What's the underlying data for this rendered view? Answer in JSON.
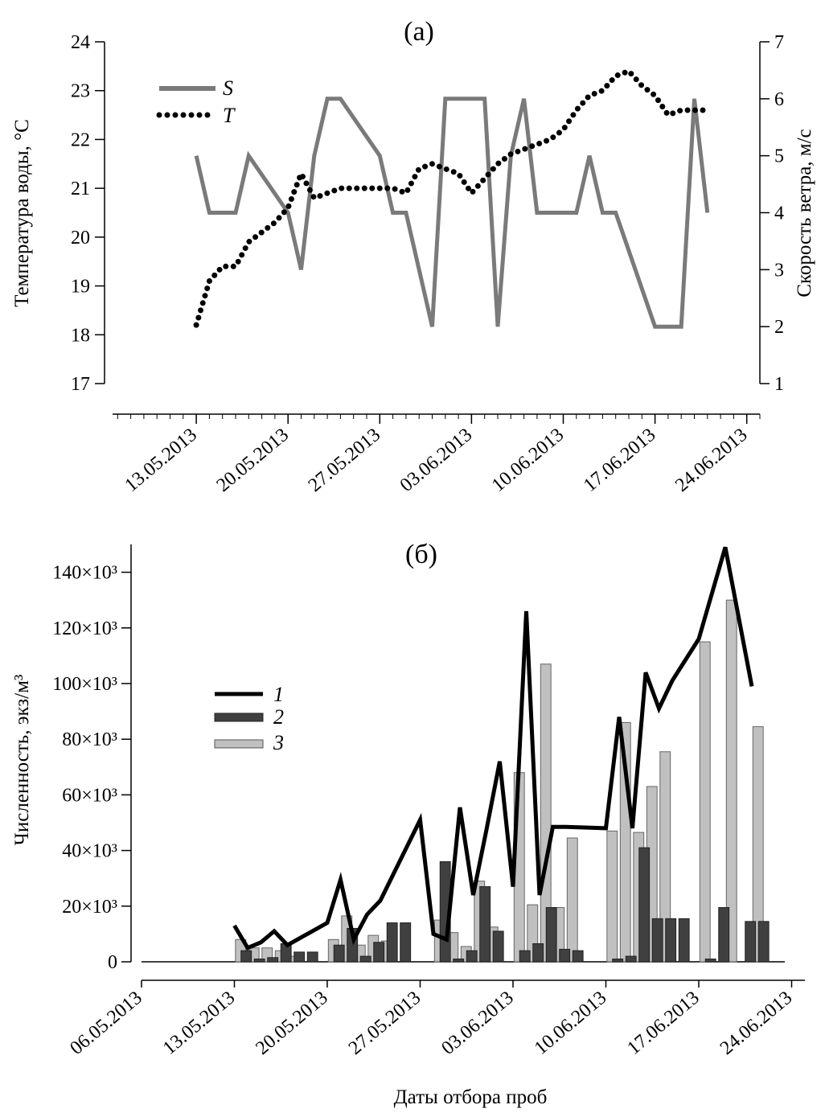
{
  "chart_data": [
    {
      "panel": "(а)",
      "type": "line",
      "ylabel": "Температура воды, °С",
      "y2label": "Скорость ветра, м/с",
      "ylim": [
        17,
        24
      ],
      "y2lim": [
        1,
        7
      ],
      "yticks": [
        17,
        18,
        19,
        20,
        21,
        22,
        23,
        24
      ],
      "y2ticks": [
        1,
        2,
        3,
        4,
        5,
        6,
        7
      ],
      "xlim": [
        "2013-05-06",
        "2013-06-25"
      ],
      "xticks": [
        "13.05.2013",
        "20.05.2013",
        "27.05.2013",
        "03.06.2013",
        "10.06.2013",
        "17.06.2013",
        "24.06.2013"
      ],
      "legend": "top-left",
      "series": [
        {
          "name": "S",
          "axis": "right",
          "style": "solid",
          "color": "#7a7a7a",
          "x": [
            "2013-05-13",
            "2013-05-14",
            "2013-05-16",
            "2013-05-17",
            "2013-05-20",
            "2013-05-21",
            "2013-05-22",
            "2013-05-23",
            "2013-05-24",
            "2013-05-27",
            "2013-05-28",
            "2013-05-29",
            "2013-05-31",
            "2013-06-01",
            "2013-06-04",
            "2013-06-05",
            "2013-06-06",
            "2013-06-07",
            "2013-06-08",
            "2013-06-10",
            "2013-06-11",
            "2013-06-12",
            "2013-06-13",
            "2013-06-14",
            "2013-06-17",
            "2013-06-19",
            "2013-06-20",
            "2013-06-21"
          ],
          "values": [
            5,
            4,
            4,
            5,
            4,
            3,
            5,
            6,
            6,
            5,
            4,
            4,
            2,
            6,
            6,
            2,
            5,
            6,
            4,
            4,
            4,
            5,
            4,
            4,
            2,
            2,
            6,
            4
          ]
        },
        {
          "name": "T",
          "axis": "left",
          "style": "dotted",
          "color": "#000000",
          "x": [
            "2013-05-13",
            "2013-05-14",
            "2013-05-15",
            "2013-05-16",
            "2013-05-17",
            "2013-05-18",
            "2013-05-19",
            "2013-05-20",
            "2013-05-21",
            "2013-05-22",
            "2013-05-23",
            "2013-05-24",
            "2013-05-25",
            "2013-05-26",
            "2013-05-27",
            "2013-05-28",
            "2013-05-29",
            "2013-05-30",
            "2013-05-31",
            "2013-06-01",
            "2013-06-02",
            "2013-06-03",
            "2013-06-04",
            "2013-06-05",
            "2013-06-06",
            "2013-06-07",
            "2013-06-08",
            "2013-06-09",
            "2013-06-10",
            "2013-06-11",
            "2013-06-12",
            "2013-06-13",
            "2013-06-14",
            "2013-06-15",
            "2013-06-16",
            "2013-06-17",
            "2013-06-18",
            "2013-06-19",
            "2013-06-20",
            "2013-06-21"
          ],
          "values": [
            18.2,
            19.1,
            19.4,
            19.4,
            19.9,
            20.1,
            20.3,
            20.6,
            21.3,
            20.8,
            20.9,
            21.0,
            21.0,
            21.0,
            21.0,
            21.0,
            20.9,
            21.4,
            21.5,
            21.4,
            21.3,
            20.9,
            21.2,
            21.5,
            21.7,
            21.8,
            21.9,
            22.0,
            22.2,
            22.6,
            22.9,
            23.0,
            23.3,
            23.4,
            23.1,
            22.9,
            22.5,
            22.6,
            22.6,
            22.6
          ]
        }
      ]
    },
    {
      "panel": "(б)",
      "type": "bar",
      "xlabel": "Даты отбора проб",
      "ylabel": "Численность, экз/м³",
      "ylim": [
        0,
        150000
      ],
      "yticks": [
        0,
        20000,
        40000,
        60000,
        80000,
        100000,
        120000,
        140000
      ],
      "ytick_labels": [
        "0",
        "20×10³",
        "40×10³",
        "60×10³",
        "80×10³",
        "100×10³",
        "120×10³",
        "140×10³"
      ],
      "xlim": [
        "2013-05-06",
        "2013-06-25"
      ],
      "xticks": [
        "06.05.2013",
        "13.05.2013",
        "20.05.2013",
        "27.05.2013",
        "03.06.2013",
        "10.06.2013",
        "17.06.2013",
        "24.06.2013"
      ],
      "legend": "center-left",
      "series": [
        {
          "name": "1",
          "style": "line",
          "color": "#000000",
          "x": [
            "2013-05-13",
            "2013-05-14",
            "2013-05-15",
            "2013-05-16",
            "2013-05-17",
            "2013-05-20",
            "2013-05-21",
            "2013-05-22",
            "2013-05-23",
            "2013-05-24",
            "2013-05-27",
            "2013-05-28",
            "2013-05-29",
            "2013-05-30",
            "2013-05-31",
            "2013-06-01",
            "2013-06-02",
            "2013-06-03",
            "2013-06-04",
            "2013-06-05",
            "2013-06-06",
            "2013-06-07",
            "2013-06-10",
            "2013-06-11",
            "2013-06-12",
            "2013-06-13",
            "2013-06-14",
            "2013-06-15",
            "2013-06-17",
            "2013-06-19",
            "2013-06-21"
          ],
          "values": [
            13000,
            5000,
            7000,
            11000,
            6000,
            14000,
            29500,
            8000,
            17000,
            22000,
            51000,
            10000,
            8000,
            55500,
            24000,
            47500,
            72000,
            27000,
            126000,
            24000,
            48500,
            48500,
            48000,
            88000,
            48000,
            104000,
            91000,
            101000,
            116000,
            149000,
            99000
          ]
        },
        {
          "name": "2",
          "style": "bar",
          "color": "#404040",
          "x": [
            "2013-05-13",
            "2013-05-14",
            "2013-05-15",
            "2013-05-16",
            "2013-05-17",
            "2013-05-18",
            "2013-05-20",
            "2013-05-21",
            "2013-05-22",
            "2013-05-23",
            "2013-05-24",
            "2013-05-25",
            "2013-05-28",
            "2013-05-29",
            "2013-05-30",
            "2013-05-31",
            "2013-06-01",
            "2013-06-03",
            "2013-06-04",
            "2013-06-05",
            "2013-06-06",
            "2013-06-07",
            "2013-06-10",
            "2013-06-11",
            "2013-06-12",
            "2013-06-13",
            "2013-06-14",
            "2013-06-15",
            "2013-06-17",
            "2013-06-18",
            "2013-06-20",
            "2013-06-21"
          ],
          "values": [
            4000,
            1000,
            1500,
            6500,
            3500,
            3500,
            6000,
            12000,
            2000,
            7000,
            14000,
            14000,
            36000,
            1000,
            4000,
            27000,
            11000,
            4000,
            6500,
            19500,
            4500,
            4000,
            1000,
            2000,
            41000,
            15500,
            15500,
            15500,
            1000,
            19500,
            14500,
            14500
          ]
        },
        {
          "name": "3",
          "style": "bar",
          "color": "#c0c0c0",
          "x": [
            "2013-05-13",
            "2013-05-14",
            "2013-05-15",
            "2013-05-16",
            "2013-05-17",
            "2013-05-20",
            "2013-05-21",
            "2013-05-22",
            "2013-05-23",
            "2013-05-24",
            "2013-05-28",
            "2013-05-29",
            "2013-05-30",
            "2013-05-31",
            "2013-06-01",
            "2013-06-03",
            "2013-06-04",
            "2013-06-05",
            "2013-06-06",
            "2013-06-07",
            "2013-06-10",
            "2013-06-11",
            "2013-06-12",
            "2013-06-13",
            "2013-06-14",
            "2013-06-17",
            "2013-06-19",
            "2013-06-21"
          ],
          "values": [
            8000,
            5000,
            5000,
            4000,
            2000,
            8000,
            16500,
            6000,
            9500,
            7500,
            15000,
            10500,
            5500,
            29000,
            12500,
            68000,
            20500,
            107000,
            19500,
            44500,
            47000,
            86000,
            46500,
            63000,
            75500,
            115000,
            130000,
            84500
          ]
        }
      ]
    }
  ]
}
